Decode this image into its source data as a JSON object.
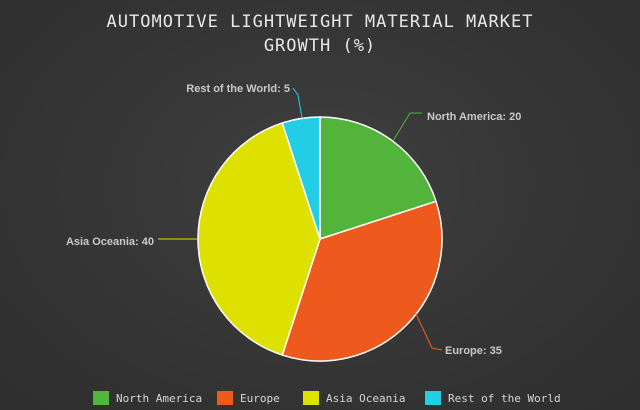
{
  "chart_data": {
    "type": "pie",
    "title_lines": [
      "AUTOMOTIVE LIGHTWEIGHT MATERIAL MARKET",
      "GROWTH (%)"
    ],
    "slices": [
      {
        "name": "North America",
        "value": 20,
        "label": "North America: 20",
        "color": "#52b43a"
      },
      {
        "name": "Europe",
        "value": 35,
        "label": "Europe: 35",
        "color": "#ee5a1d"
      },
      {
        "name": "Asia Oceania",
        "value": 40,
        "label": "Asia Oceania: 40",
        "color": "#dee000"
      },
      {
        "name": "Rest of the World",
        "value": 5,
        "label": "Rest of the World: 5",
        "color": "#23cde6"
      }
    ],
    "legend": {
      "placement": "bottom",
      "items": [
        "North America",
        "Europe",
        "Asia Oceania",
        "Rest of the World"
      ]
    },
    "start_angle": "12 o'clock",
    "direction": "clockwise"
  },
  "colors": {
    "background": "#353535",
    "slice_border": "#ffffff",
    "label_text": "#c9c9c9",
    "title_text": "#e8e8e8"
  }
}
